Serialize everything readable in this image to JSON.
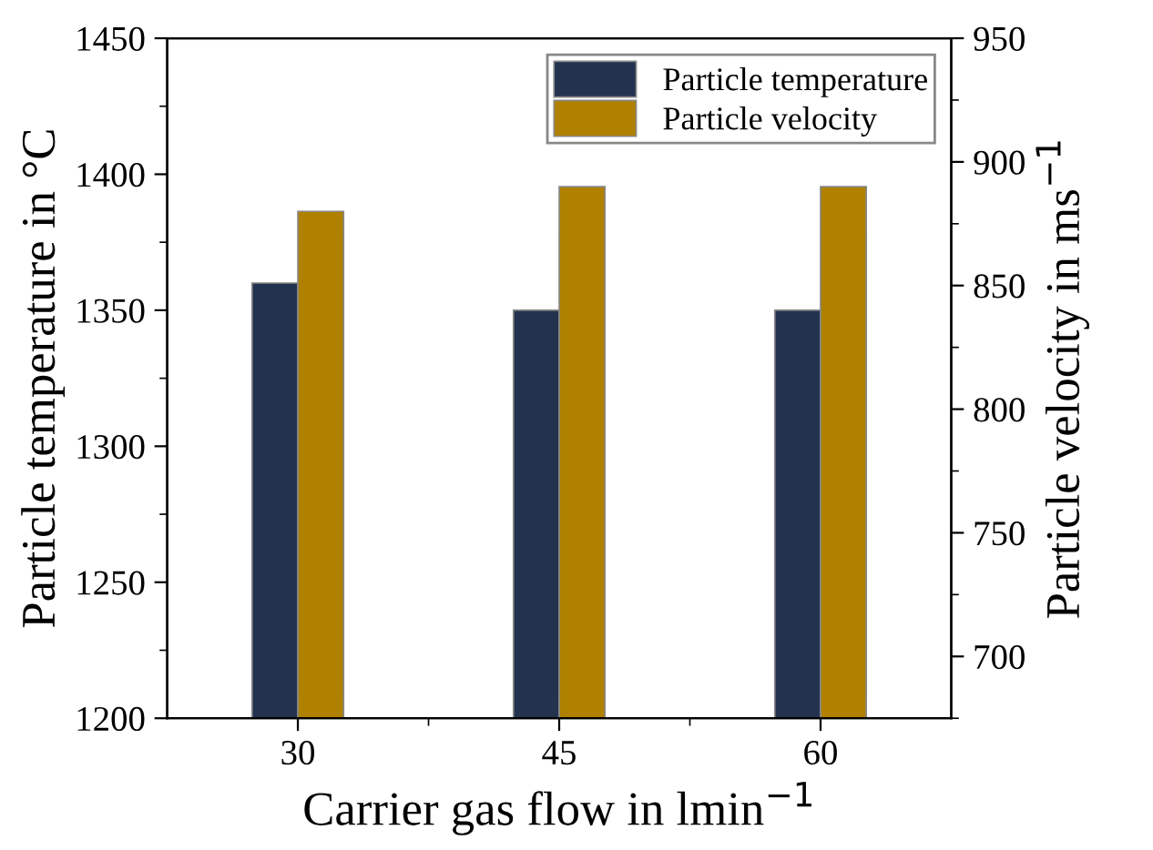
{
  "chart_data": {
    "type": "bar",
    "xlabel": "Carrier gas flow in lmin$^{−1}$",
    "ylabel": "Particle temperature in °C",
    "y2label": "Particle velocity in ms$^{−1}$",
    "categories": [
      "30",
      "45",
      "60"
    ],
    "series": [
      {
        "name": "Particle temperature",
        "color": "#22324f",
        "values": [
          1360,
          1350,
          1350
        ]
      },
      {
        "name": "Particle velocity",
        "color": "#b08000",
        "values": [
          880,
          890,
          890
        ],
        "axis": "y2"
      }
    ],
    "ylim": [
      1200,
      1450
    ],
    "yticks": [
      1200,
      1250,
      1300,
      1350,
      1400,
      1450
    ],
    "y2lim": [
      675,
      950
    ],
    "y2ticks": [
      700,
      750,
      800,
      850,
      900,
      950
    ],
    "legend": "top right",
    "grid": false
  }
}
